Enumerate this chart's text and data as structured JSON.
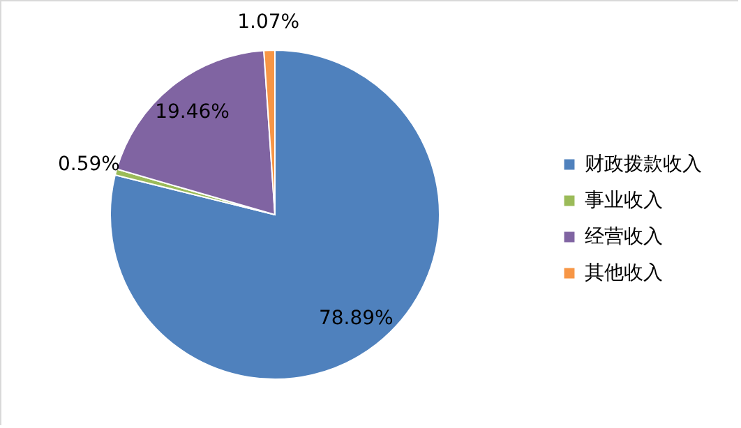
{
  "chart_data": {
    "type": "pie",
    "categories": [
      "财政拨款收入",
      "事业收入",
      "经营收入",
      "其他收入"
    ],
    "values": [
      78.89,
      0.59,
      19.46,
      1.07
    ],
    "colors": [
      "#4f81bd",
      "#9bbb59",
      "#8064a2",
      "#f79646"
    ],
    "value_labels": [
      "78.89%",
      "0.59%",
      "19.46%",
      "1.07%"
    ],
    "legend": "right"
  }
}
